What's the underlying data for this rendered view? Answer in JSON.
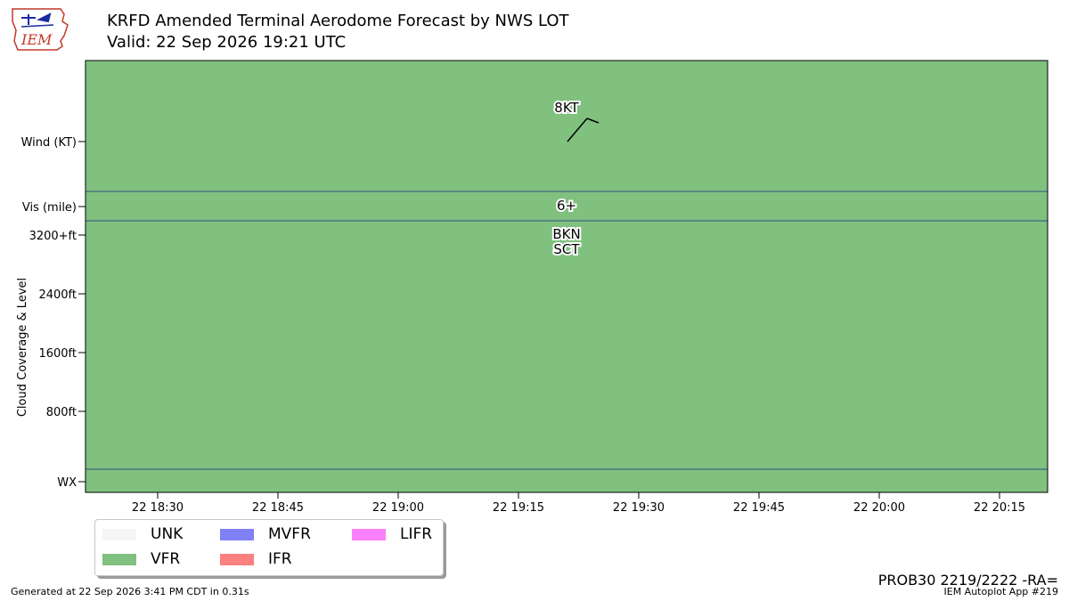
{
  "header": {
    "title_line1": "KRFD Amended Terminal Aerodome Forecast by NWS LOT",
    "title_line2": "Valid: 22 Sep 2026 19:21 UTC"
  },
  "logo": {
    "text": "IEM"
  },
  "chart_data": {
    "type": "timeline",
    "ylabel": "Cloud Coverage & Level",
    "row_labels": {
      "wind": "Wind (KT)",
      "vis": "Vis (mile)",
      "wx": "WX"
    },
    "cloud_ticks": [
      "3200+ft",
      "2400ft",
      "1600ft",
      "800ft"
    ],
    "cloud_tick_values_ft": [
      3200,
      2400,
      1600,
      800
    ],
    "x_ticks": [
      "22 18:30",
      "22 18:45",
      "22 19:00",
      "22 19:15",
      "22 19:30",
      "22 19:45",
      "22 20:00",
      "22 20:15"
    ],
    "x_tick_minutes_after_1830": [
      0,
      15,
      30,
      45,
      60,
      75,
      90,
      105
    ],
    "x_range_minutes_after_1830": [
      -9,
      111
    ],
    "background_category": "VFR",
    "forecast": {
      "time": "22 19:21",
      "time_minutes_after_1830": 51,
      "wind_label": "8KT",
      "wind_speed_kt": 8,
      "wind_direction_deg": 220,
      "vis_label": "6+",
      "cloud_labels": [
        "BKN",
        "SCT"
      ]
    }
  },
  "legend": {
    "items": [
      {
        "label": "UNK",
        "color": "#f5f5f5"
      },
      {
        "label": "MVFR",
        "color": "#8080f7"
      },
      {
        "label": "LIFR",
        "color": "#fb80fb"
      },
      {
        "label": "VFR",
        "color": "#80c080"
      },
      {
        "label": "IFR",
        "color": "#fb8080"
      }
    ]
  },
  "colors": {
    "vfr": "#80c180",
    "divider": "#2f4f80"
  },
  "raw_taf": "PROB30 2219/2222 -RA=",
  "footer": {
    "generated": "Generated at 22 Sep 2026 3:41 PM CDT in 0.31s",
    "app": "IEM Autoplot App #219"
  }
}
